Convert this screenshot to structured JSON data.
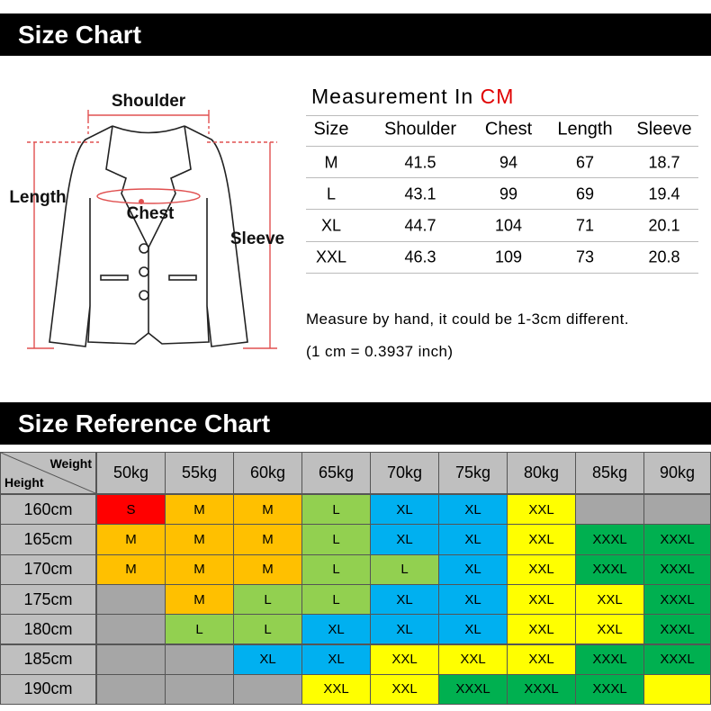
{
  "header": {
    "title": "Size Chart"
  },
  "diagram": {
    "shoulder": "Shoulder",
    "length": "Length",
    "chest": "Chest",
    "sleeve": "Sleeve"
  },
  "measurement": {
    "title": "Measurement In",
    "unit": "CM",
    "columns": [
      "Size",
      "Shoulder",
      "Chest",
      "Length",
      "Sleeve"
    ],
    "rows": [
      [
        "M",
        41.5,
        94,
        67,
        18.7
      ],
      [
        "L",
        43.1,
        99,
        69,
        19.4
      ],
      [
        "XL",
        44.7,
        104,
        71,
        20.1
      ],
      [
        "XXL",
        46.3,
        109,
        73,
        20.8
      ]
    ]
  },
  "notes": [
    "Measure by hand, it could be 1-3cm different.",
    "(1 cm = 0.3937 inch)"
  ],
  "reference": {
    "title": "Size Reference Chart",
    "corner": {
      "weight": "Weight",
      "height": "Height"
    },
    "weights": [
      "50kg",
      "55kg",
      "60kg",
      "65kg",
      "70kg",
      "75kg",
      "80kg",
      "85kg",
      "90kg"
    ],
    "rows": [
      {
        "height": "160cm",
        "cells": [
          {
            "size": "S",
            "color": "#ff0000"
          },
          {
            "size": "M",
            "color": "#ffc000"
          },
          {
            "size": "M",
            "color": "#ffc000"
          },
          {
            "size": "L",
            "color": "#92d050"
          },
          {
            "size": "XL",
            "color": "#00b0f0"
          },
          {
            "size": "XL",
            "color": "#00b0f0"
          },
          {
            "size": "XXL",
            "color": "#ffff00"
          },
          {
            "color": "#a6a6a6"
          },
          {
            "color": "#a6a6a6"
          }
        ]
      },
      {
        "height": "165cm",
        "cells": [
          {
            "size": "M",
            "color": "#ffc000"
          },
          {
            "size": "M",
            "color": "#ffc000"
          },
          {
            "size": "M",
            "color": "#ffc000"
          },
          {
            "size": "L",
            "color": "#92d050"
          },
          {
            "size": "XL",
            "color": "#00b0f0"
          },
          {
            "size": "XL",
            "color": "#00b0f0"
          },
          {
            "size": "XXL",
            "color": "#ffff00"
          },
          {
            "size": "XXXL",
            "color": "#00b050"
          },
          {
            "size": "XXXL",
            "color": "#00b050"
          }
        ]
      },
      {
        "height": "170cm",
        "cells": [
          {
            "size": "M",
            "color": "#ffc000"
          },
          {
            "size": "M",
            "color": "#ffc000"
          },
          {
            "size": "M",
            "color": "#ffc000"
          },
          {
            "size": "L",
            "color": "#92d050"
          },
          {
            "size": "L",
            "color": "#92d050"
          },
          {
            "size": "XL",
            "color": "#00b0f0"
          },
          {
            "size": "XXL",
            "color": "#ffff00"
          },
          {
            "size": "XXXL",
            "color": "#00b050"
          },
          {
            "size": "XXXL",
            "color": "#00b050"
          }
        ]
      },
      {
        "height": "175cm",
        "cells": [
          {
            "color": "#a6a6a6"
          },
          {
            "size": "M",
            "color": "#ffc000"
          },
          {
            "size": "L",
            "color": "#92d050"
          },
          {
            "size": "L",
            "color": "#92d050"
          },
          {
            "size": "XL",
            "color": "#00b0f0"
          },
          {
            "size": "XL",
            "color": "#00b0f0"
          },
          {
            "size": "XXL",
            "color": "#ffff00"
          },
          {
            "size": "XXL",
            "color": "#ffff00"
          },
          {
            "size": "XXXL",
            "color": "#00b050"
          }
        ]
      },
      {
        "height": "180cm",
        "cells": [
          {
            "color": "#a6a6a6"
          },
          {
            "size": "L",
            "color": "#92d050"
          },
          {
            "size": "L",
            "color": "#92d050"
          },
          {
            "size": "XL",
            "color": "#00b0f0"
          },
          {
            "size": "XL",
            "color": "#00b0f0"
          },
          {
            "size": "XL",
            "color": "#00b0f0"
          },
          {
            "size": "XXL",
            "color": "#ffff00"
          },
          {
            "size": "XXL",
            "color": "#ffff00"
          },
          {
            "size": "XXXL",
            "color": "#00b050"
          }
        ]
      },
      {
        "height": "185cm",
        "cells": [
          {
            "color": "#a6a6a6"
          },
          {
            "color": "#a6a6a6"
          },
          {
            "size": "XL",
            "color": "#00b0f0"
          },
          {
            "size": "XL",
            "color": "#00b0f0"
          },
          {
            "size": "XXL",
            "color": "#ffff00"
          },
          {
            "size": "XXL",
            "color": "#ffff00"
          },
          {
            "size": "XXL",
            "color": "#ffff00"
          },
          {
            "size": "XXXL",
            "color": "#00b050"
          },
          {
            "size": "XXXL",
            "color": "#00b050"
          }
        ]
      },
      {
        "height": "190cm",
        "cells": [
          {
            "color": "#a6a6a6"
          },
          {
            "color": "#a6a6a6"
          },
          {
            "color": "#a6a6a6"
          },
          {
            "size": "XXL",
            "color": "#ffff00"
          },
          {
            "size": "XXL",
            "color": "#ffff00"
          },
          {
            "size": "XXXL",
            "color": "#00b050"
          },
          {
            "size": "XXXL",
            "color": "#00b050"
          },
          {
            "size": "XXXL",
            "color": "#00b050"
          },
          {
            "color": "#ffff00"
          }
        ]
      }
    ]
  }
}
